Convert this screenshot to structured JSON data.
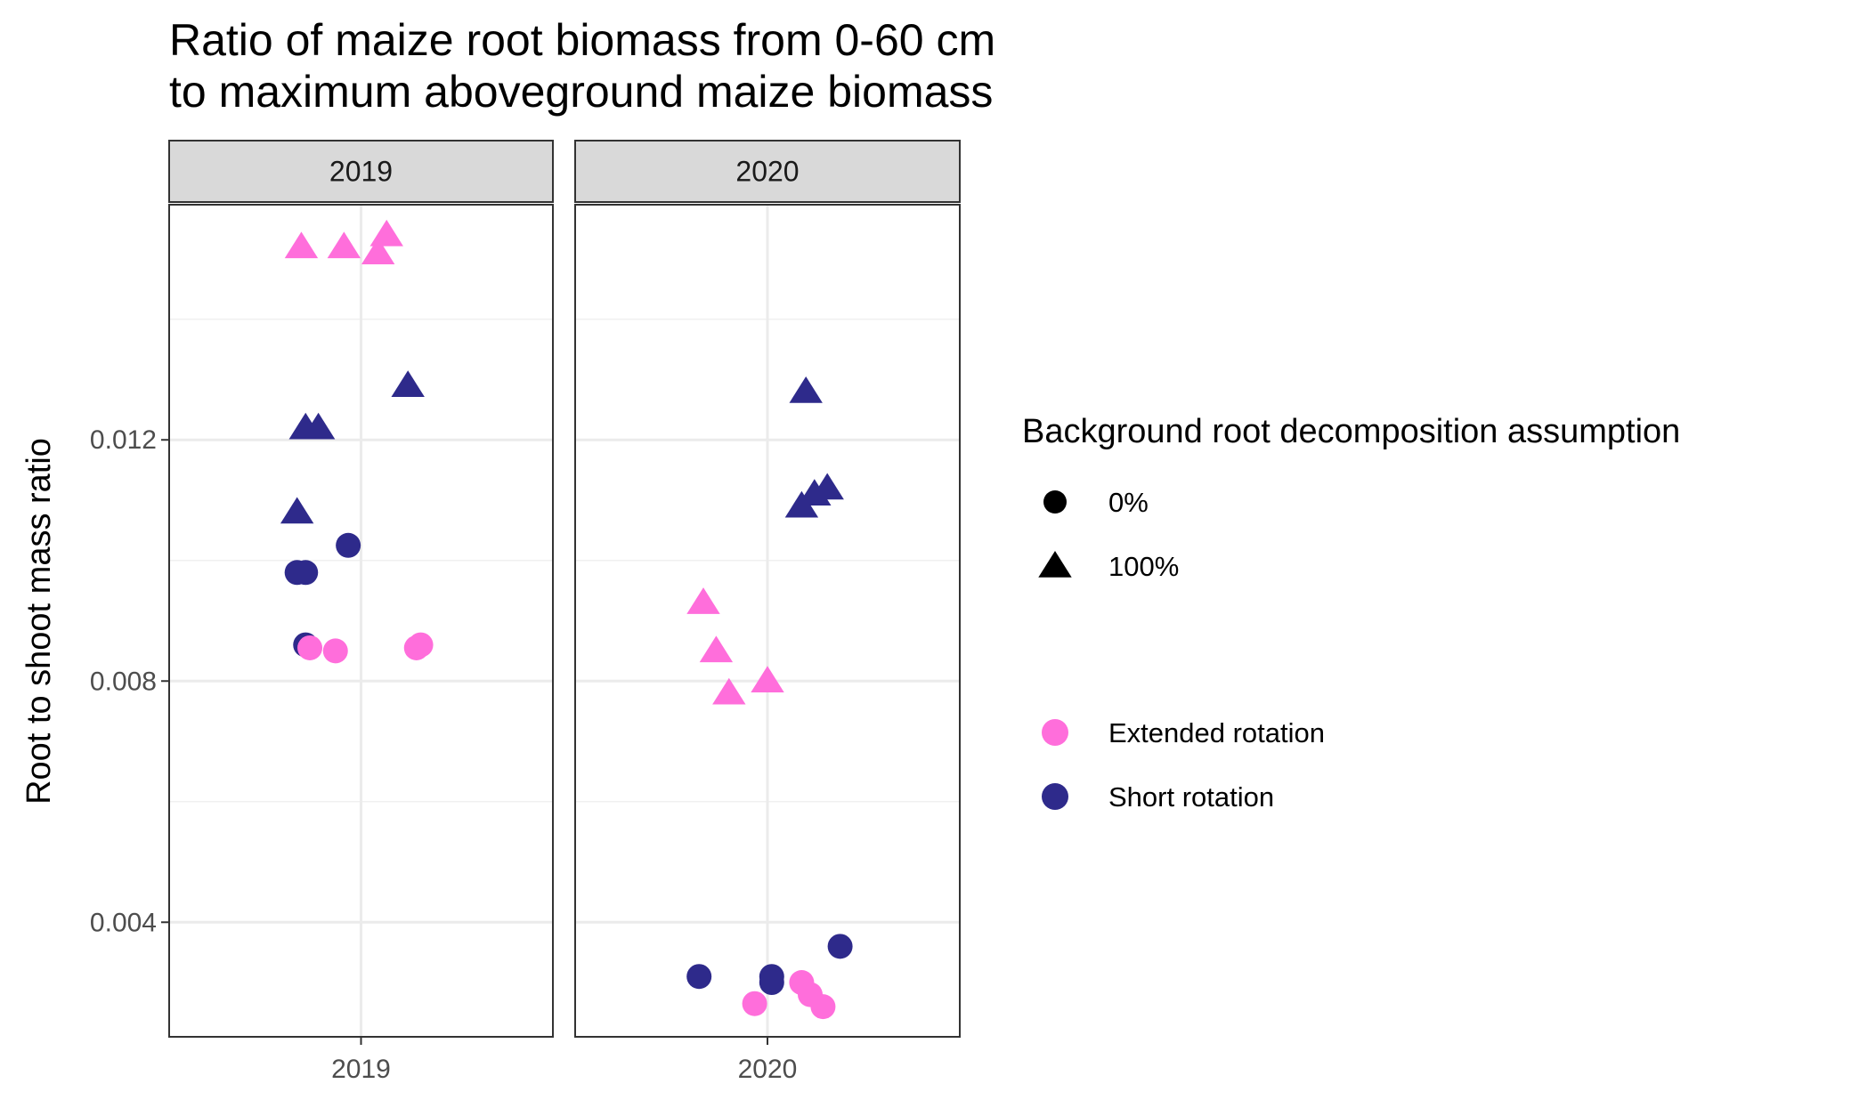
{
  "chart_data": {
    "type": "scatter",
    "title_lines": [
      "Ratio of maize root biomass from 0-60 cm",
      "to maximum aboveground maize biomass"
    ],
    "xlabel": "",
    "ylabel": "Root to shoot mass ratio",
    "ylim": [
      0.0021,
      0.0159
    ],
    "yticks": [
      0.004,
      0.008,
      0.012
    ],
    "ytick_labels": [
      "0.004",
      "0.008",
      "0.012"
    ],
    "y_minor_ticks": [
      0.006,
      0.01,
      0.014
    ],
    "grid": true,
    "panels": [
      {
        "label": "2019",
        "x_tick_label": "2019"
      },
      {
        "label": "2020",
        "x_tick_label": "2020"
      }
    ],
    "legend_position": "right",
    "legend_shape": {
      "title": "Background root decomposition assumption",
      "items": [
        {
          "label": "0%",
          "shape": "circle"
        },
        {
          "label": "100%",
          "shape": "triangle"
        }
      ]
    },
    "legend_color": {
      "items": [
        {
          "label": "Extended rotation",
          "color": "#FF6EDB"
        },
        {
          "label": "Short rotation",
          "color": "#2E2A8B"
        }
      ]
    },
    "points": [
      {
        "panel": "2019",
        "jitter": -0.14,
        "y": 0.0152,
        "shape": "triangle",
        "color_group": "Extended rotation"
      },
      {
        "panel": "2019",
        "jitter": -0.04,
        "y": 0.0152,
        "shape": "triangle",
        "color_group": "Extended rotation"
      },
      {
        "panel": "2019",
        "jitter": 0.06,
        "y": 0.0154,
        "shape": "triangle",
        "color_group": "Extended rotation"
      },
      {
        "panel": "2019",
        "jitter": 0.04,
        "y": 0.0151,
        "shape": "triangle",
        "color_group": "Extended rotation"
      },
      {
        "panel": "2019",
        "jitter": 0.11,
        "y": 0.0129,
        "shape": "triangle",
        "color_group": "Short rotation"
      },
      {
        "panel": "2019",
        "jitter": -0.13,
        "y": 0.0122,
        "shape": "triangle",
        "color_group": "Short rotation"
      },
      {
        "panel": "2019",
        "jitter": -0.1,
        "y": 0.0122,
        "shape": "triangle",
        "color_group": "Short rotation"
      },
      {
        "panel": "2019",
        "jitter": -0.15,
        "y": 0.0108,
        "shape": "triangle",
        "color_group": "Short rotation"
      },
      {
        "panel": "2019",
        "jitter": -0.03,
        "y": 0.01025,
        "shape": "circle",
        "color_group": "Short rotation"
      },
      {
        "panel": "2019",
        "jitter": -0.15,
        "y": 0.0098,
        "shape": "circle",
        "color_group": "Short rotation"
      },
      {
        "panel": "2019",
        "jitter": -0.13,
        "y": 0.0098,
        "shape": "circle",
        "color_group": "Short rotation"
      },
      {
        "panel": "2019",
        "jitter": -0.13,
        "y": 0.0086,
        "shape": "circle",
        "color_group": "Short rotation"
      },
      {
        "panel": "2019",
        "jitter": -0.12,
        "y": 0.00855,
        "shape": "circle",
        "color_group": "Extended rotation"
      },
      {
        "panel": "2019",
        "jitter": -0.06,
        "y": 0.0085,
        "shape": "circle",
        "color_group": "Extended rotation"
      },
      {
        "panel": "2019",
        "jitter": 0.14,
        "y": 0.0086,
        "shape": "circle",
        "color_group": "Extended rotation"
      },
      {
        "panel": "2019",
        "jitter": 0.13,
        "y": 0.00855,
        "shape": "circle",
        "color_group": "Extended rotation"
      },
      {
        "panel": "2020",
        "jitter": 0.09,
        "y": 0.0128,
        "shape": "triangle",
        "color_group": "Short rotation"
      },
      {
        "panel": "2020",
        "jitter": 0.14,
        "y": 0.0112,
        "shape": "triangle",
        "color_group": "Short rotation"
      },
      {
        "panel": "2020",
        "jitter": 0.11,
        "y": 0.0111,
        "shape": "triangle",
        "color_group": "Short rotation"
      },
      {
        "panel": "2020",
        "jitter": 0.08,
        "y": 0.0109,
        "shape": "triangle",
        "color_group": "Short rotation"
      },
      {
        "panel": "2020",
        "jitter": -0.15,
        "y": 0.0093,
        "shape": "triangle",
        "color_group": "Extended rotation"
      },
      {
        "panel": "2020",
        "jitter": -0.12,
        "y": 0.0085,
        "shape": "triangle",
        "color_group": "Extended rotation"
      },
      {
        "panel": "2020",
        "jitter": -0.09,
        "y": 0.0078,
        "shape": "triangle",
        "color_group": "Extended rotation"
      },
      {
        "panel": "2020",
        "jitter": 0.0,
        "y": 0.008,
        "shape": "triangle",
        "color_group": "Extended rotation"
      },
      {
        "panel": "2020",
        "jitter": 0.17,
        "y": 0.0036,
        "shape": "circle",
        "color_group": "Short rotation"
      },
      {
        "panel": "2020",
        "jitter": -0.16,
        "y": 0.0031,
        "shape": "circle",
        "color_group": "Short rotation"
      },
      {
        "panel": "2020",
        "jitter": 0.01,
        "y": 0.0031,
        "shape": "circle",
        "color_group": "Short rotation"
      },
      {
        "panel": "2020",
        "jitter": 0.01,
        "y": 0.003,
        "shape": "circle",
        "color_group": "Short rotation"
      },
      {
        "panel": "2020",
        "jitter": 0.08,
        "y": 0.003,
        "shape": "circle",
        "color_group": "Extended rotation"
      },
      {
        "panel": "2020",
        "jitter": 0.1,
        "y": 0.0028,
        "shape": "circle",
        "color_group": "Extended rotation"
      },
      {
        "panel": "2020",
        "jitter": -0.03,
        "y": 0.00265,
        "shape": "circle",
        "color_group": "Extended rotation"
      },
      {
        "panel": "2020",
        "jitter": 0.13,
        "y": 0.0026,
        "shape": "circle",
        "color_group": "Extended rotation"
      }
    ]
  }
}
